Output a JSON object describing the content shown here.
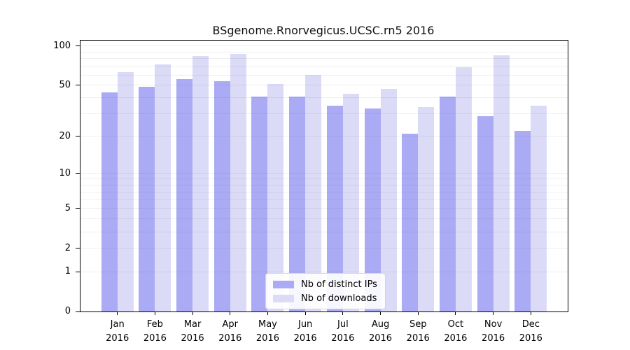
{
  "chart_data": {
    "type": "bar",
    "title": "BSgenome.Rnorvegicus.UCSC.rn5 2016",
    "categories": [
      "Jan",
      "Feb",
      "Mar",
      "Apr",
      "May",
      "Jun",
      "Jul",
      "Aug",
      "Sep",
      "Oct",
      "Nov",
      "Dec"
    ],
    "category_sublabel": "2016",
    "series": [
      {
        "name": "Nb of distinct IPs",
        "color": "#aaabf4",
        "values": [
          44,
          49,
          56,
          54,
          41,
          41,
          35,
          33,
          21,
          41,
          29,
          22
        ]
      },
      {
        "name": "Nb of downloads",
        "color": "#dbdbf8",
        "values": [
          63,
          72,
          84,
          87,
          51,
          60,
          43,
          47,
          34,
          69,
          85,
          35
        ]
      }
    ],
    "xlabel": "",
    "ylabel": "",
    "yscale": "log1p",
    "ylim": [
      0,
      110
    ],
    "ytick_labels": [
      "100",
      "50",
      "20",
      "10",
      "5",
      "2",
      "1",
      "0"
    ],
    "ytick_values": [
      100,
      50,
      20,
      10,
      5,
      2,
      1,
      0
    ],
    "gridline_values": [
      1,
      2,
      3,
      4,
      5,
      6,
      7,
      8,
      9,
      10,
      20,
      30,
      40,
      50,
      60,
      70,
      80,
      90,
      100
    ],
    "grid": "horizontal",
    "legend_position": "inside-bottom-center",
    "colors": {
      "axis": "#000000",
      "gridline": "rgba(90,90,90,0.10)",
      "background": "#ffffff"
    }
  }
}
